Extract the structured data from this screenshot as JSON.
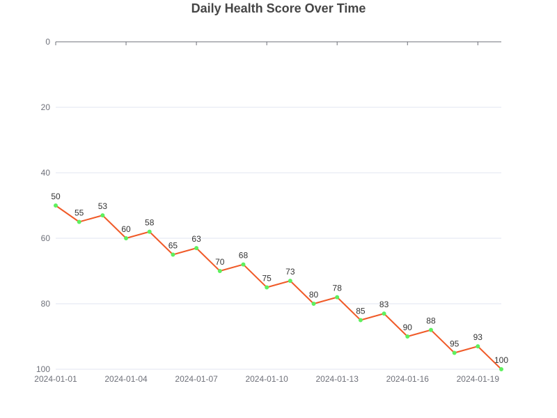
{
  "chart_data": {
    "type": "line",
    "title": "Daily Health Score Over Time",
    "xlabel": "",
    "ylabel": "",
    "y_inverted": true,
    "ylim": [
      0,
      100
    ],
    "y_ticks": [
      0,
      20,
      40,
      60,
      80,
      100
    ],
    "x": [
      "2024-01-01",
      "2024-01-02",
      "2024-01-03",
      "2024-01-04",
      "2024-01-05",
      "2024-01-06",
      "2024-01-07",
      "2024-01-08",
      "2024-01-09",
      "2024-01-10",
      "2024-01-11",
      "2024-01-12",
      "2024-01-13",
      "2024-01-14",
      "2024-01-15",
      "2024-01-16",
      "2024-01-17",
      "2024-01-18",
      "2024-01-19",
      "2024-01-20"
    ],
    "x_tick_labels": [
      "2024-01-01",
      "2024-01-04",
      "2024-01-07",
      "2024-01-10",
      "2024-01-13",
      "2024-01-16",
      "2024-01-19"
    ],
    "grid": true,
    "series": [
      {
        "values": [
          50,
          55,
          53,
          60,
          58,
          65,
          63,
          70,
          68,
          75,
          73,
          80,
          78,
          85,
          83,
          90,
          88,
          95,
          93,
          100
        ],
        "line_color": "#f05a28",
        "marker_color": "#5ef05e",
        "labels_shown": true
      }
    ]
  }
}
